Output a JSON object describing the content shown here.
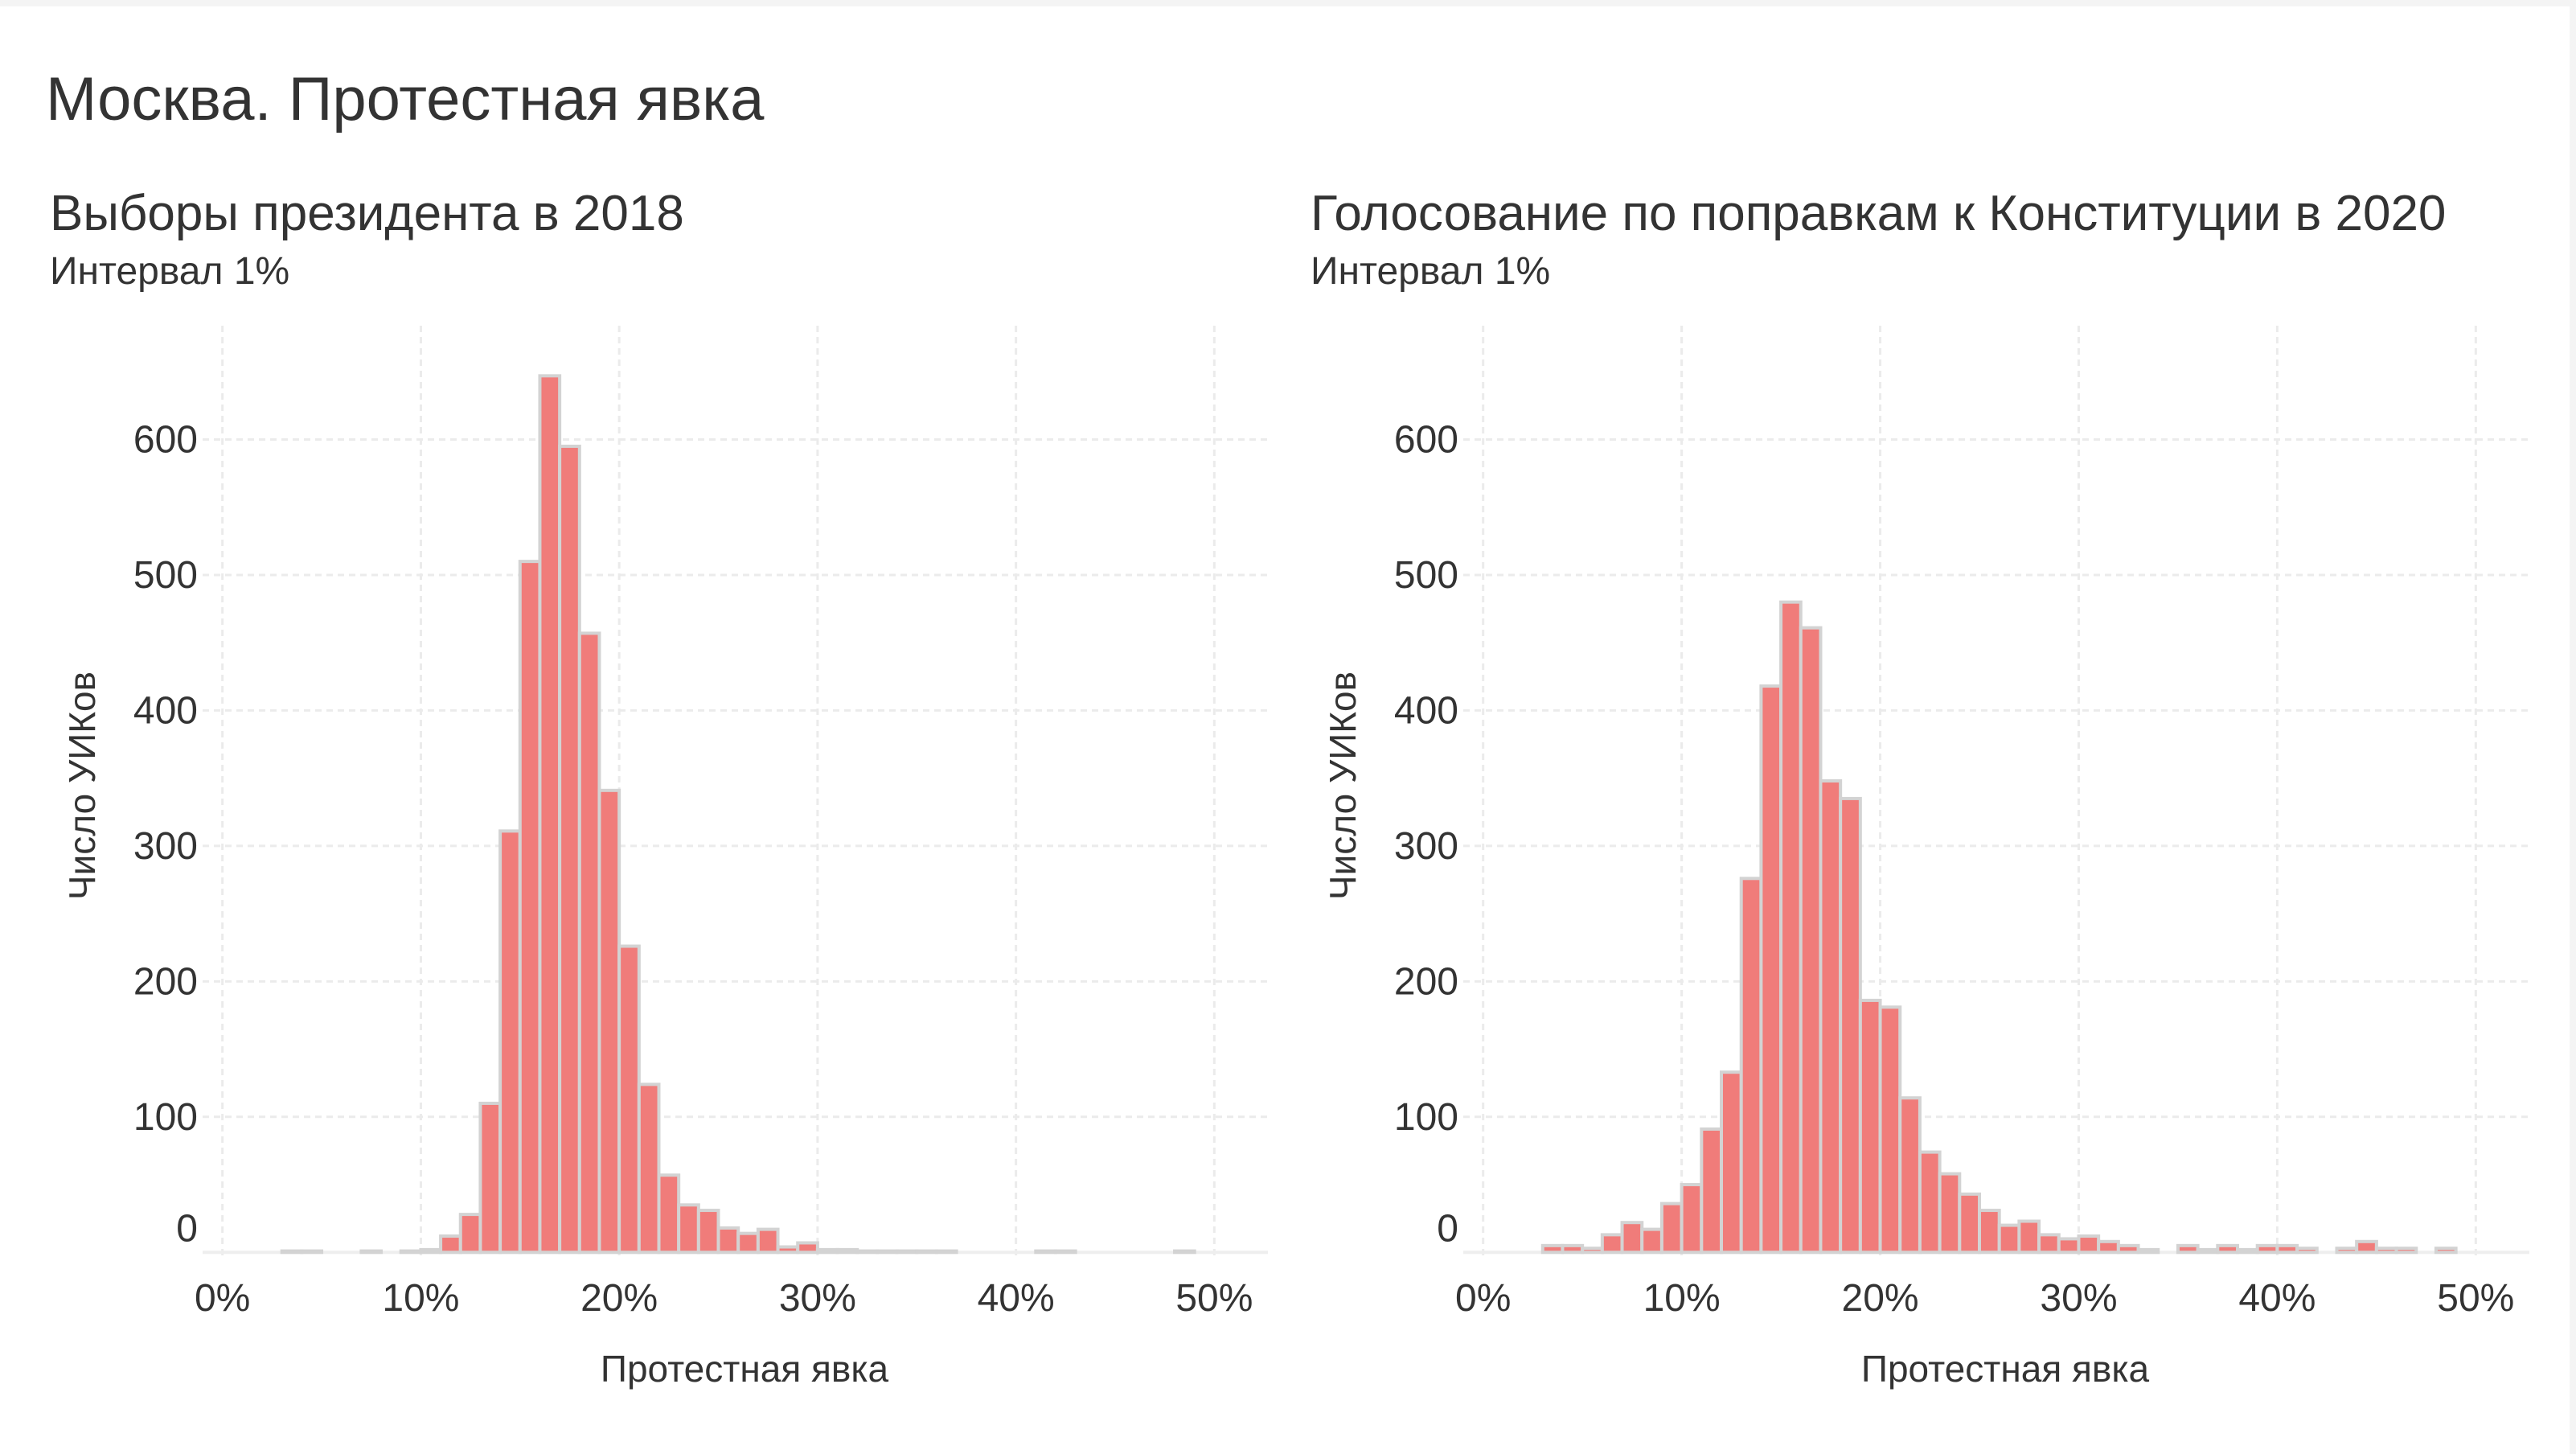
{
  "title": "Москва. Протестная явка",
  "bar_color": "#F07C7A",
  "bar_outline": "#D3D3D3",
  "chart_data": [
    {
      "type": "bar",
      "title": "Выборы президента в 2018",
      "subtitle": "Интервал 1%",
      "xlabel": "Протестная явка",
      "ylabel": "Число УИКов",
      "xlim": [
        -1,
        52.7
      ],
      "ylim": [
        -4,
        684
      ],
      "grid": true,
      "bin_width": 1,
      "xticks": [
        0,
        10,
        20,
        30,
        40,
        50
      ],
      "xtick_labels": [
        "0%",
        "10%",
        "20%",
        "30%",
        "40%",
        "50%"
      ],
      "yticks": [
        0,
        100,
        200,
        300,
        400,
        500,
        600
      ],
      "ytick_labels": [
        "0",
        "100",
        "200",
        "300",
        "400",
        "500",
        "600"
      ],
      "bins": [
        3,
        4,
        7,
        9,
        10,
        11,
        12,
        13,
        14,
        15,
        16,
        17,
        18,
        19,
        20,
        21,
        22,
        23,
        24,
        25,
        26,
        27,
        28,
        29,
        30,
        31,
        32,
        33,
        34,
        35,
        36,
        41,
        42,
        48
      ],
      "values": [
        1,
        1,
        1,
        1,
        2,
        12,
        28,
        110,
        311,
        510,
        647,
        595,
        457,
        341,
        226,
        124,
        57,
        35,
        31,
        18,
        14,
        17,
        4,
        7,
        2,
        2,
        1,
        1,
        1,
        1,
        1,
        1,
        1,
        1
      ]
    },
    {
      "type": "bar",
      "title": "Голосование по поправкам к Конституции в 2020",
      "subtitle": "Интервал 1%",
      "xlabel": "Протестная явка",
      "ylabel": "Число УИКов",
      "xlim": [
        -1,
        52.7
      ],
      "ylim": [
        -4,
        684
      ],
      "grid": true,
      "bin_width": 1,
      "xticks": [
        0,
        10,
        20,
        30,
        40,
        50
      ],
      "xtick_labels": [
        "0%",
        "10%",
        "20%",
        "30%",
        "40%",
        "50%"
      ],
      "yticks": [
        0,
        100,
        200,
        300,
        400,
        500,
        600
      ],
      "ytick_labels": [
        "0",
        "100",
        "200",
        "300",
        "400",
        "500",
        "600"
      ],
      "bins": [
        3,
        4,
        5,
        6,
        7,
        8,
        9,
        10,
        11,
        12,
        13,
        14,
        15,
        16,
        17,
        18,
        19,
        20,
        21,
        22,
        23,
        24,
        25,
        26,
        27,
        28,
        29,
        30,
        31,
        32,
        33,
        35,
        36,
        37,
        38,
        39,
        40,
        41,
        43,
        44,
        45,
        46,
        48
      ],
      "values": [
        5,
        5,
        3,
        13,
        22,
        17,
        36,
        50,
        91,
        133,
        276,
        418,
        480,
        461,
        348,
        335,
        186,
        181,
        114,
        74,
        58,
        43,
        31,
        20,
        23,
        13,
        10,
        12,
        8,
        5,
        2,
        5,
        2,
        5,
        2,
        5,
        5,
        3,
        3,
        8,
        3,
        3,
        3
      ]
    }
  ]
}
